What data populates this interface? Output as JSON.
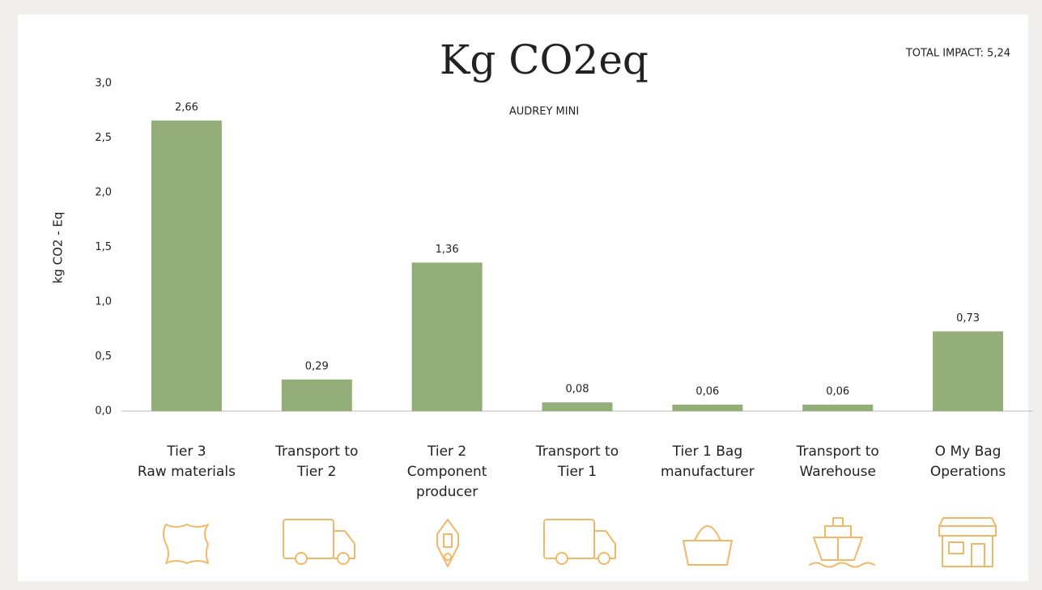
{
  "chart_data": {
    "type": "bar",
    "title": "Kg CO2eq",
    "subtitle": "AUDREY MINI",
    "annotation": "TOTAL IMPACT: 5,24",
    "y_label": "kg CO2 - Eq",
    "categories": [
      [
        "Tier 3",
        "Raw materials"
      ],
      [
        "Transport to",
        "Tier 2"
      ],
      [
        "Tier 2",
        "Component",
        "producer"
      ],
      [
        "Transport to",
        "Tier 1"
      ],
      [
        "Tier 1 Bag",
        "manufacturer"
      ],
      [
        "Transport to",
        "Warehouse"
      ],
      [
        "O My Bag",
        "Operations"
      ]
    ],
    "values": [
      2.66,
      0.29,
      1.36,
      0.08,
      0.06,
      0.06,
      0.73
    ],
    "value_labels": [
      "2,66",
      "0,29",
      "1,36",
      "0,08",
      "0,06",
      "0,06",
      "0,73"
    ],
    "color": "#93ae78",
    "ylim": [
      0,
      3
    ],
    "yticks": [
      {
        "value": 0,
        "label": "0,0"
      },
      {
        "value": 0.5,
        "label": "0,5"
      },
      {
        "value": 1,
        "label": "1,0"
      },
      {
        "value": 1.5,
        "label": "1,5"
      },
      {
        "value": 2,
        "label": "2,0"
      },
      {
        "value": 2.5,
        "label": "2,5"
      },
      {
        "value": 3,
        "label": "3,0"
      }
    ],
    "grid": false
  }
}
